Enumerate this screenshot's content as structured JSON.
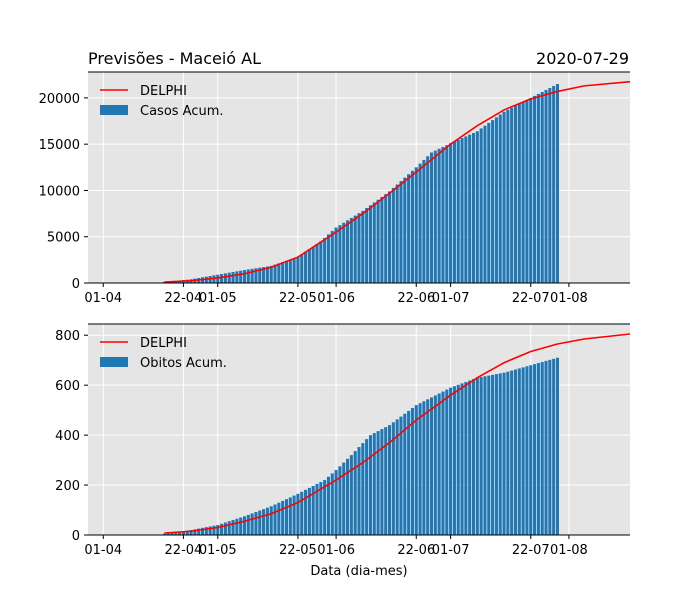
{
  "header": {
    "title": "Previsões - Maceió AL",
    "date": "2020-07-29"
  },
  "colors": {
    "axes_bg": "#e5e5e5",
    "grid": "#ffffff",
    "bar": "#1f77b4",
    "line": "#ff0000"
  },
  "chart_data": [
    {
      "type": "bar",
      "x_start": "2020-03-28",
      "x_end": "2020-08-17",
      "grid": true,
      "legend_position": "upper-left",
      "xticks": [
        {
          "date": "2020-04-01",
          "label": "01-04"
        },
        {
          "date": "2020-04-22",
          "label": "22-04"
        },
        {
          "date": "2020-05-01",
          "label": "01-05"
        },
        {
          "date": "2020-05-22",
          "label": "22-05"
        },
        {
          "date": "2020-06-01",
          "label": "01-06"
        },
        {
          "date": "2020-06-22",
          "label": "22-06"
        },
        {
          "date": "2020-07-01",
          "label": "01-07"
        },
        {
          "date": "2020-07-22",
          "label": "22-07"
        },
        {
          "date": "2020-08-01",
          "label": "01-08"
        }
      ],
      "yticks": [
        0,
        5000,
        10000,
        15000,
        20000
      ],
      "ylim": [
        0,
        22800
      ],
      "series": [
        {
          "name": "Casos Acum.",
          "type": "bar",
          "points": [
            [
              "2020-04-17",
              100
            ],
            [
              "2020-04-24",
              400
            ],
            [
              "2020-05-01",
              900
            ],
            [
              "2020-05-08",
              1400
            ],
            [
              "2020-05-15",
              1850
            ],
            [
              "2020-05-22",
              2800
            ],
            [
              "2020-05-28",
              4500
            ],
            [
              "2020-06-01",
              6000
            ],
            [
              "2020-06-08",
              7800
            ],
            [
              "2020-06-15",
              9900
            ],
            [
              "2020-06-22",
              12500
            ],
            [
              "2020-06-26",
              14100
            ],
            [
              "2020-07-01",
              15100
            ],
            [
              "2020-07-08",
              16400
            ],
            [
              "2020-07-15",
              18500
            ],
            [
              "2020-07-22",
              20000
            ],
            [
              "2020-07-29",
              21500
            ]
          ]
        },
        {
          "name": "DELPHI",
          "type": "line",
          "points": [
            [
              "2020-04-17",
              100
            ],
            [
              "2020-04-24",
              250
            ],
            [
              "2020-05-01",
              550
            ],
            [
              "2020-05-08",
              1000
            ],
            [
              "2020-05-15",
              1700
            ],
            [
              "2020-05-22",
              2800
            ],
            [
              "2020-06-01",
              5500
            ],
            [
              "2020-06-08",
              7500
            ],
            [
              "2020-06-15",
              9700
            ],
            [
              "2020-06-22",
              12000
            ],
            [
              "2020-07-01",
              15000
            ],
            [
              "2020-07-08",
              17000
            ],
            [
              "2020-07-15",
              18700
            ],
            [
              "2020-07-22",
              19900
            ],
            [
              "2020-07-29",
              20700
            ],
            [
              "2020-08-05",
              21300
            ],
            [
              "2020-08-17",
              21750
            ]
          ]
        }
      ]
    },
    {
      "type": "bar",
      "x_start": "2020-03-28",
      "x_end": "2020-08-17",
      "grid": true,
      "legend_position": "upper-left",
      "xlabel": "Data (dia-mes)",
      "xticks": [
        {
          "date": "2020-04-01",
          "label": "01-04"
        },
        {
          "date": "2020-04-22",
          "label": "22-04"
        },
        {
          "date": "2020-05-01",
          "label": "01-05"
        },
        {
          "date": "2020-05-22",
          "label": "22-05"
        },
        {
          "date": "2020-06-01",
          "label": "01-06"
        },
        {
          "date": "2020-06-22",
          "label": "22-06"
        },
        {
          "date": "2020-07-01",
          "label": "01-07"
        },
        {
          "date": "2020-07-22",
          "label": "22-07"
        },
        {
          "date": "2020-08-01",
          "label": "01-08"
        }
      ],
      "yticks": [
        0,
        200,
        400,
        600,
        800
      ],
      "ylim": [
        0,
        845
      ],
      "series": [
        {
          "name": "Obitos Acum.",
          "type": "bar",
          "points": [
            [
              "2020-04-17",
              5
            ],
            [
              "2020-04-24",
              20
            ],
            [
              "2020-05-01",
              40
            ],
            [
              "2020-05-08",
              75
            ],
            [
              "2020-05-15",
              115
            ],
            [
              "2020-05-22",
              165
            ],
            [
              "2020-05-29",
              220
            ],
            [
              "2020-06-01",
              260
            ],
            [
              "2020-06-05",
              320
            ],
            [
              "2020-06-10",
              400
            ],
            [
              "2020-06-15",
              440
            ],
            [
              "2020-06-22",
              520
            ],
            [
              "2020-07-01",
              590
            ],
            [
              "2020-07-08",
              630
            ],
            [
              "2020-07-15",
              650
            ],
            [
              "2020-07-22",
              680
            ],
            [
              "2020-07-29",
              710
            ]
          ]
        },
        {
          "name": "DELPHI",
          "type": "line",
          "points": [
            [
              "2020-04-17",
              8
            ],
            [
              "2020-04-24",
              15
            ],
            [
              "2020-05-01",
              30
            ],
            [
              "2020-05-08",
              55
            ],
            [
              "2020-05-15",
              85
            ],
            [
              "2020-05-22",
              130
            ],
            [
              "2020-06-01",
              220
            ],
            [
              "2020-06-08",
              290
            ],
            [
              "2020-06-15",
              370
            ],
            [
              "2020-06-22",
              460
            ],
            [
              "2020-07-01",
              560
            ],
            [
              "2020-07-08",
              630
            ],
            [
              "2020-07-15",
              690
            ],
            [
              "2020-07-22",
              735
            ],
            [
              "2020-07-29",
              765
            ],
            [
              "2020-08-05",
              785
            ],
            [
              "2020-08-17",
              805
            ]
          ]
        }
      ]
    }
  ]
}
